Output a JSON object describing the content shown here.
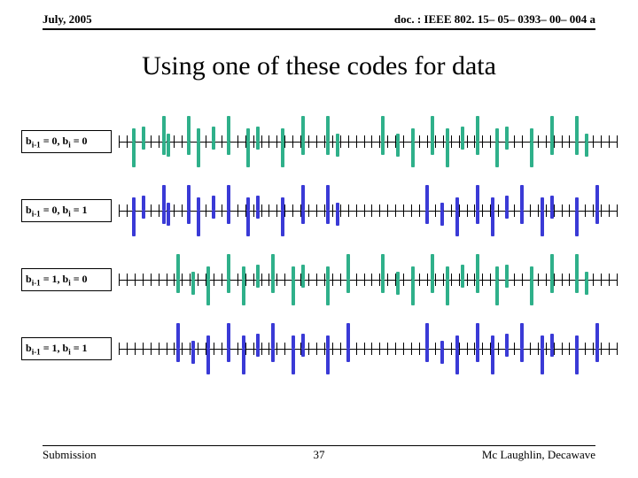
{
  "header": {
    "date": "July, 2005",
    "doc": "doc. : IEEE 802. 15– 05– 0393– 00– 004 a"
  },
  "title": "Using one of these codes for data",
  "footer": {
    "left": "Submission",
    "page": "37",
    "right": "Mc Laughlin, Decawave"
  },
  "chart": {
    "type": "waveform-panel",
    "background_color": "#ffffff",
    "axis_color": "#000000",
    "tick_color": "#000000",
    "tick_count": 64,
    "tick_height": 14,
    "label_fontsize": 12,
    "label_border_color": "#000000",
    "colors": {
      "green": "#2fb08a",
      "blue": "#3a3ad6"
    },
    "pulse_width": 4,
    "pulse_full_height": 44,
    "pulse_half_height": 26,
    "rows": [
      {
        "label_html": "b<sub>i-1</sub> = 0, b<sub>i</sub> = 0",
        "pulses": [
          {
            "x": 0.03,
            "amp": 1,
            "sign": -1,
            "c": "green"
          },
          {
            "x": 0.05,
            "amp": 0.6,
            "sign": 1,
            "c": "green"
          },
          {
            "x": 0.09,
            "amp": 1,
            "sign": 1,
            "c": "green"
          },
          {
            "x": 0.1,
            "amp": 0.6,
            "sign": -1,
            "c": "green"
          },
          {
            "x": 0.14,
            "amp": 1,
            "sign": 1,
            "c": "green"
          },
          {
            "x": 0.16,
            "amp": 1,
            "sign": -1,
            "c": "green"
          },
          {
            "x": 0.19,
            "amp": 0.6,
            "sign": 1,
            "c": "green"
          },
          {
            "x": 0.22,
            "amp": 1,
            "sign": 1,
            "c": "green"
          },
          {
            "x": 0.26,
            "amp": 1,
            "sign": -1,
            "c": "green"
          },
          {
            "x": 0.28,
            "amp": 0.6,
            "sign": 1,
            "c": "green"
          },
          {
            "x": 0.33,
            "amp": 1,
            "sign": -1,
            "c": "green"
          },
          {
            "x": 0.37,
            "amp": 1,
            "sign": 1,
            "c": "green"
          },
          {
            "x": 0.42,
            "amp": 1,
            "sign": 1,
            "c": "green"
          },
          {
            "x": 0.44,
            "amp": 0.6,
            "sign": -1,
            "c": "green"
          },
          {
            "x": 0.53,
            "amp": 1,
            "sign": 1,
            "c": "green"
          },
          {
            "x": 0.56,
            "amp": 0.6,
            "sign": -1,
            "c": "green"
          },
          {
            "x": 0.59,
            "amp": 1,
            "sign": -1,
            "c": "green"
          },
          {
            "x": 0.63,
            "amp": 1,
            "sign": 1,
            "c": "green"
          },
          {
            "x": 0.66,
            "amp": 1,
            "sign": -1,
            "c": "green"
          },
          {
            "x": 0.69,
            "amp": 0.6,
            "sign": 1,
            "c": "green"
          },
          {
            "x": 0.72,
            "amp": 1,
            "sign": 1,
            "c": "green"
          },
          {
            "x": 0.76,
            "amp": 1,
            "sign": -1,
            "c": "green"
          },
          {
            "x": 0.78,
            "amp": 0.6,
            "sign": 1,
            "c": "green"
          },
          {
            "x": 0.83,
            "amp": 1,
            "sign": -1,
            "c": "green"
          },
          {
            "x": 0.87,
            "amp": 1,
            "sign": 1,
            "c": "green"
          },
          {
            "x": 0.92,
            "amp": 1,
            "sign": 1,
            "c": "green"
          },
          {
            "x": 0.94,
            "amp": 0.6,
            "sign": -1,
            "c": "green"
          }
        ]
      },
      {
        "label_html": "b<sub>i-1</sub> = 0, b<sub>i</sub> = 1",
        "pulses": [
          {
            "x": 0.03,
            "amp": 1,
            "sign": -1,
            "c": "blue"
          },
          {
            "x": 0.05,
            "amp": 0.6,
            "sign": 1,
            "c": "blue"
          },
          {
            "x": 0.09,
            "amp": 1,
            "sign": 1,
            "c": "blue"
          },
          {
            "x": 0.1,
            "amp": 0.6,
            "sign": -1,
            "c": "blue"
          },
          {
            "x": 0.14,
            "amp": 1,
            "sign": 1,
            "c": "blue"
          },
          {
            "x": 0.16,
            "amp": 1,
            "sign": -1,
            "c": "blue"
          },
          {
            "x": 0.19,
            "amp": 0.6,
            "sign": 1,
            "c": "blue"
          },
          {
            "x": 0.22,
            "amp": 1,
            "sign": 1,
            "c": "blue"
          },
          {
            "x": 0.26,
            "amp": 1,
            "sign": -1,
            "c": "blue"
          },
          {
            "x": 0.28,
            "amp": 0.6,
            "sign": 1,
            "c": "blue"
          },
          {
            "x": 0.33,
            "amp": 1,
            "sign": -1,
            "c": "blue"
          },
          {
            "x": 0.37,
            "amp": 1,
            "sign": 1,
            "c": "blue"
          },
          {
            "x": 0.42,
            "amp": 1,
            "sign": 1,
            "c": "blue"
          },
          {
            "x": 0.44,
            "amp": 0.6,
            "sign": -1,
            "c": "blue"
          },
          {
            "x": 0.62,
            "amp": 1,
            "sign": 1,
            "c": "blue"
          },
          {
            "x": 0.65,
            "amp": 0.6,
            "sign": -1,
            "c": "blue"
          },
          {
            "x": 0.68,
            "amp": 1,
            "sign": -1,
            "c": "blue"
          },
          {
            "x": 0.72,
            "amp": 1,
            "sign": 1,
            "c": "blue"
          },
          {
            "x": 0.75,
            "amp": 1,
            "sign": -1,
            "c": "blue"
          },
          {
            "x": 0.78,
            "amp": 0.6,
            "sign": 1,
            "c": "blue"
          },
          {
            "x": 0.81,
            "amp": 1,
            "sign": 1,
            "c": "blue"
          },
          {
            "x": 0.85,
            "amp": 1,
            "sign": -1,
            "c": "blue"
          },
          {
            "x": 0.87,
            "amp": 0.6,
            "sign": 1,
            "c": "blue"
          },
          {
            "x": 0.92,
            "amp": 1,
            "sign": -1,
            "c": "blue"
          },
          {
            "x": 0.96,
            "amp": 1,
            "sign": 1,
            "c": "blue"
          }
        ]
      },
      {
        "label_html": "b<sub>i-1</sub> = 1, b<sub>i</sub> = 0",
        "pulses": [
          {
            "x": 0.12,
            "amp": 1,
            "sign": 1,
            "c": "green"
          },
          {
            "x": 0.15,
            "amp": 0.6,
            "sign": -1,
            "c": "green"
          },
          {
            "x": 0.18,
            "amp": 1,
            "sign": -1,
            "c": "green"
          },
          {
            "x": 0.22,
            "amp": 1,
            "sign": 1,
            "c": "green"
          },
          {
            "x": 0.25,
            "amp": 1,
            "sign": -1,
            "c": "green"
          },
          {
            "x": 0.28,
            "amp": 0.6,
            "sign": 1,
            "c": "green"
          },
          {
            "x": 0.31,
            "amp": 1,
            "sign": 1,
            "c": "green"
          },
          {
            "x": 0.35,
            "amp": 1,
            "sign": -1,
            "c": "green"
          },
          {
            "x": 0.37,
            "amp": 0.6,
            "sign": 1,
            "c": "green"
          },
          {
            "x": 0.42,
            "amp": 1,
            "sign": -1,
            "c": "green"
          },
          {
            "x": 0.46,
            "amp": 1,
            "sign": 1,
            "c": "green"
          },
          {
            "x": 0.53,
            "amp": 1,
            "sign": 1,
            "c": "green"
          },
          {
            "x": 0.56,
            "amp": 0.6,
            "sign": -1,
            "c": "green"
          },
          {
            "x": 0.59,
            "amp": 1,
            "sign": -1,
            "c": "green"
          },
          {
            "x": 0.63,
            "amp": 1,
            "sign": 1,
            "c": "green"
          },
          {
            "x": 0.66,
            "amp": 1,
            "sign": -1,
            "c": "green"
          },
          {
            "x": 0.69,
            "amp": 0.6,
            "sign": 1,
            "c": "green"
          },
          {
            "x": 0.72,
            "amp": 1,
            "sign": 1,
            "c": "green"
          },
          {
            "x": 0.76,
            "amp": 1,
            "sign": -1,
            "c": "green"
          },
          {
            "x": 0.78,
            "amp": 0.6,
            "sign": 1,
            "c": "green"
          },
          {
            "x": 0.83,
            "amp": 1,
            "sign": -1,
            "c": "green"
          },
          {
            "x": 0.87,
            "amp": 1,
            "sign": 1,
            "c": "green"
          },
          {
            "x": 0.92,
            "amp": 1,
            "sign": 1,
            "c": "green"
          },
          {
            "x": 0.94,
            "amp": 0.6,
            "sign": -1,
            "c": "green"
          }
        ]
      },
      {
        "label_html": "b<sub>i-1</sub> = 1, b<sub>i</sub> = 1",
        "pulses": [
          {
            "x": 0.12,
            "amp": 1,
            "sign": 1,
            "c": "blue"
          },
          {
            "x": 0.15,
            "amp": 0.6,
            "sign": -1,
            "c": "blue"
          },
          {
            "x": 0.18,
            "amp": 1,
            "sign": -1,
            "c": "blue"
          },
          {
            "x": 0.22,
            "amp": 1,
            "sign": 1,
            "c": "blue"
          },
          {
            "x": 0.25,
            "amp": 1,
            "sign": -1,
            "c": "blue"
          },
          {
            "x": 0.28,
            "amp": 0.6,
            "sign": 1,
            "c": "blue"
          },
          {
            "x": 0.31,
            "amp": 1,
            "sign": 1,
            "c": "blue"
          },
          {
            "x": 0.35,
            "amp": 1,
            "sign": -1,
            "c": "blue"
          },
          {
            "x": 0.37,
            "amp": 0.6,
            "sign": 1,
            "c": "blue"
          },
          {
            "x": 0.42,
            "amp": 1,
            "sign": -1,
            "c": "blue"
          },
          {
            "x": 0.46,
            "amp": 1,
            "sign": 1,
            "c": "blue"
          },
          {
            "x": 0.62,
            "amp": 1,
            "sign": 1,
            "c": "blue"
          },
          {
            "x": 0.65,
            "amp": 0.6,
            "sign": -1,
            "c": "blue"
          },
          {
            "x": 0.68,
            "amp": 1,
            "sign": -1,
            "c": "blue"
          },
          {
            "x": 0.72,
            "amp": 1,
            "sign": 1,
            "c": "blue"
          },
          {
            "x": 0.75,
            "amp": 1,
            "sign": -1,
            "c": "blue"
          },
          {
            "x": 0.78,
            "amp": 0.6,
            "sign": 1,
            "c": "blue"
          },
          {
            "x": 0.81,
            "amp": 1,
            "sign": 1,
            "c": "blue"
          },
          {
            "x": 0.85,
            "amp": 1,
            "sign": -1,
            "c": "blue"
          },
          {
            "x": 0.87,
            "amp": 0.6,
            "sign": 1,
            "c": "blue"
          },
          {
            "x": 0.92,
            "amp": 1,
            "sign": -1,
            "c": "blue"
          },
          {
            "x": 0.96,
            "amp": 1,
            "sign": 1,
            "c": "blue"
          }
        ]
      }
    ]
  }
}
